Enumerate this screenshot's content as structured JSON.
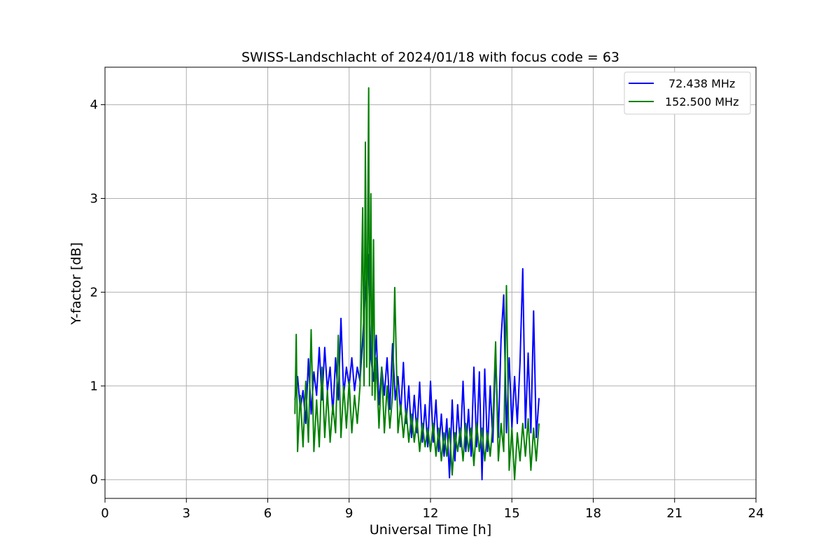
{
  "chart_data": {
    "type": "line",
    "title": "SWISS-Landschlacht of 2024/01/18 with focus code = 63",
    "xlabel": "Universal Time [h]",
    "ylabel": "Y-factor [dB]",
    "xlim": [
      0,
      24
    ],
    "ylim": [
      -0.2,
      4.4
    ],
    "x_ticks": [
      "0",
      "3",
      "6",
      "9",
      "12",
      "15",
      "18",
      "21",
      "24"
    ],
    "y_ticks": [
      "0",
      "1",
      "2",
      "3",
      "4"
    ],
    "grid": true,
    "legend_position": "top-right",
    "series": [
      {
        "name": "72.438 MHz",
        "color": "#0000ff",
        "points": [
          [
            7.0,
            0.85
          ],
          [
            7.1,
            1.1
          ],
          [
            7.2,
            0.75
          ],
          [
            7.3,
            0.95
          ],
          [
            7.4,
            0.6
          ],
          [
            7.5,
            1.29
          ],
          [
            7.6,
            0.7
          ],
          [
            7.7,
            1.15
          ],
          [
            7.8,
            0.9
          ],
          [
            7.9,
            1.41
          ],
          [
            8.0,
            0.85
          ],
          [
            8.1,
            1.41
          ],
          [
            8.2,
            0.95
          ],
          [
            8.3,
            1.2
          ],
          [
            8.4,
            0.7
          ],
          [
            8.5,
            1.3
          ],
          [
            8.6,
            0.85
          ],
          [
            8.7,
            1.72
          ],
          [
            8.8,
            0.9
          ],
          [
            8.9,
            1.2
          ],
          [
            9.0,
            1.0
          ],
          [
            9.1,
            1.3
          ],
          [
            9.2,
            0.95
          ],
          [
            9.3,
            1.2
          ],
          [
            9.4,
            1.05
          ],
          [
            9.5,
            1.5
          ],
          [
            9.6,
            2.0
          ],
          [
            9.7,
            2.4
          ],
          [
            9.8,
            1.3
          ],
          [
            9.9,
            1.05
          ],
          [
            10.0,
            1.54
          ],
          [
            10.1,
            0.8
          ],
          [
            10.2,
            1.2
          ],
          [
            10.3,
            0.9
          ],
          [
            10.4,
            1.3
          ],
          [
            10.5,
            0.75
          ],
          [
            10.6,
            1.45
          ],
          [
            10.7,
            0.85
          ],
          [
            10.8,
            1.1
          ],
          [
            10.9,
            0.7
          ],
          [
            11.0,
            1.25
          ],
          [
            11.1,
            0.6
          ],
          [
            11.2,
            1.0
          ],
          [
            11.3,
            0.45
          ],
          [
            11.4,
            0.9
          ],
          [
            11.5,
            0.5
          ],
          [
            11.6,
            1.04
          ],
          [
            11.7,
            0.4
          ],
          [
            11.8,
            0.8
          ],
          [
            11.9,
            0.35
          ],
          [
            12.0,
            1.05
          ],
          [
            12.1,
            0.4
          ],
          [
            12.2,
            0.85
          ],
          [
            12.3,
            0.3
          ],
          [
            12.4,
            0.7
          ],
          [
            12.5,
            0.25
          ],
          [
            12.6,
            0.65
          ],
          [
            12.7,
            0.02
          ],
          [
            12.8,
            0.85
          ],
          [
            12.9,
            0.2
          ],
          [
            13.0,
            0.8
          ],
          [
            13.1,
            0.35
          ],
          [
            13.2,
            1.05
          ],
          [
            13.3,
            0.3
          ],
          [
            13.4,
            0.75
          ],
          [
            13.5,
            0.25
          ],
          [
            13.6,
            1.2
          ],
          [
            13.7,
            0.35
          ],
          [
            13.8,
            1.15
          ],
          [
            13.9,
            0.0
          ],
          [
            14.0,
            1.18
          ],
          [
            14.1,
            0.3
          ],
          [
            14.2,
            1.0
          ],
          [
            14.3,
            0.4
          ],
          [
            14.4,
            1.35
          ],
          [
            14.5,
            0.45
          ],
          [
            14.6,
            1.5
          ],
          [
            14.7,
            1.97
          ],
          [
            14.8,
            0.5
          ],
          [
            14.9,
            1.3
          ],
          [
            15.0,
            0.55
          ],
          [
            15.1,
            1.1
          ],
          [
            15.2,
            0.6
          ],
          [
            15.3,
            1.25
          ],
          [
            15.4,
            2.25
          ],
          [
            15.5,
            0.55
          ],
          [
            15.6,
            1.35
          ],
          [
            15.7,
            0.5
          ],
          [
            15.8,
            1.8
          ],
          [
            15.9,
            0.45
          ],
          [
            16.0,
            0.87
          ]
        ]
      },
      {
        "name": "152.500 MHz",
        "color": "#008000",
        "points": [
          [
            7.0,
            0.7
          ],
          [
            7.05,
            1.55
          ],
          [
            7.1,
            0.3
          ],
          [
            7.2,
            0.9
          ],
          [
            7.3,
            0.35
          ],
          [
            7.4,
            1.05
          ],
          [
            7.5,
            0.4
          ],
          [
            7.6,
            1.6
          ],
          [
            7.7,
            0.3
          ],
          [
            7.8,
            0.85
          ],
          [
            7.9,
            0.35
          ],
          [
            8.0,
            1.2
          ],
          [
            8.1,
            0.45
          ],
          [
            8.2,
            0.95
          ],
          [
            8.3,
            0.4
          ],
          [
            8.4,
            0.8
          ],
          [
            8.5,
            0.5
          ],
          [
            8.6,
            1.54
          ],
          [
            8.7,
            0.45
          ],
          [
            8.8,
            1.0
          ],
          [
            8.9,
            0.55
          ],
          [
            9.0,
            1.05
          ],
          [
            9.1,
            0.5
          ],
          [
            9.2,
            0.9
          ],
          [
            9.3,
            0.6
          ],
          [
            9.4,
            1.0
          ],
          [
            9.5,
            2.9
          ],
          [
            9.55,
            1.0
          ],
          [
            9.6,
            3.6
          ],
          [
            9.65,
            1.2
          ],
          [
            9.72,
            4.18
          ],
          [
            9.75,
            1.0
          ],
          [
            9.8,
            3.05
          ],
          [
            9.85,
            0.9
          ],
          [
            9.9,
            2.56
          ],
          [
            9.95,
            0.85
          ],
          [
            10.0,
            1.3
          ],
          [
            10.1,
            0.55
          ],
          [
            10.2,
            1.2
          ],
          [
            10.3,
            0.5
          ],
          [
            10.4,
            1.0
          ],
          [
            10.5,
            0.55
          ],
          [
            10.6,
            0.9
          ],
          [
            10.68,
            2.05
          ],
          [
            10.8,
            0.5
          ],
          [
            10.9,
            0.8
          ],
          [
            11.0,
            0.45
          ],
          [
            11.1,
            0.75
          ],
          [
            11.2,
            0.4
          ],
          [
            11.3,
            0.7
          ],
          [
            11.4,
            0.4
          ],
          [
            11.5,
            0.65
          ],
          [
            11.6,
            0.3
          ],
          [
            11.7,
            0.6
          ],
          [
            11.8,
            0.35
          ],
          [
            11.9,
            0.55
          ],
          [
            12.0,
            0.3
          ],
          [
            12.1,
            0.6
          ],
          [
            12.2,
            0.25
          ],
          [
            12.3,
            0.55
          ],
          [
            12.4,
            0.2
          ],
          [
            12.5,
            0.5
          ],
          [
            12.6,
            0.25
          ],
          [
            12.7,
            0.55
          ],
          [
            12.8,
            0.05
          ],
          [
            12.9,
            0.5
          ],
          [
            13.0,
            0.3
          ],
          [
            13.1,
            0.55
          ],
          [
            13.2,
            0.2
          ],
          [
            13.3,
            0.6
          ],
          [
            13.4,
            0.3
          ],
          [
            13.5,
            0.55
          ],
          [
            13.6,
            0.15
          ],
          [
            13.7,
            0.6
          ],
          [
            13.8,
            0.3
          ],
          [
            13.9,
            0.55
          ],
          [
            14.0,
            0.2
          ],
          [
            14.1,
            0.5
          ],
          [
            14.2,
            0.25
          ],
          [
            14.3,
            0.6
          ],
          [
            14.4,
            1.47
          ],
          [
            14.5,
            0.2
          ],
          [
            14.6,
            0.6
          ],
          [
            14.7,
            0.3
          ],
          [
            14.8,
            2.07
          ],
          [
            14.9,
            0.1
          ],
          [
            15.0,
            0.55
          ],
          [
            15.1,
            0.0
          ],
          [
            15.2,
            0.5
          ],
          [
            15.3,
            0.2
          ],
          [
            15.4,
            0.6
          ],
          [
            15.5,
            0.25
          ],
          [
            15.6,
            0.65
          ],
          [
            15.7,
            0.1
          ],
          [
            15.8,
            0.55
          ],
          [
            15.9,
            0.2
          ],
          [
            16.0,
            0.6
          ]
        ]
      }
    ]
  }
}
